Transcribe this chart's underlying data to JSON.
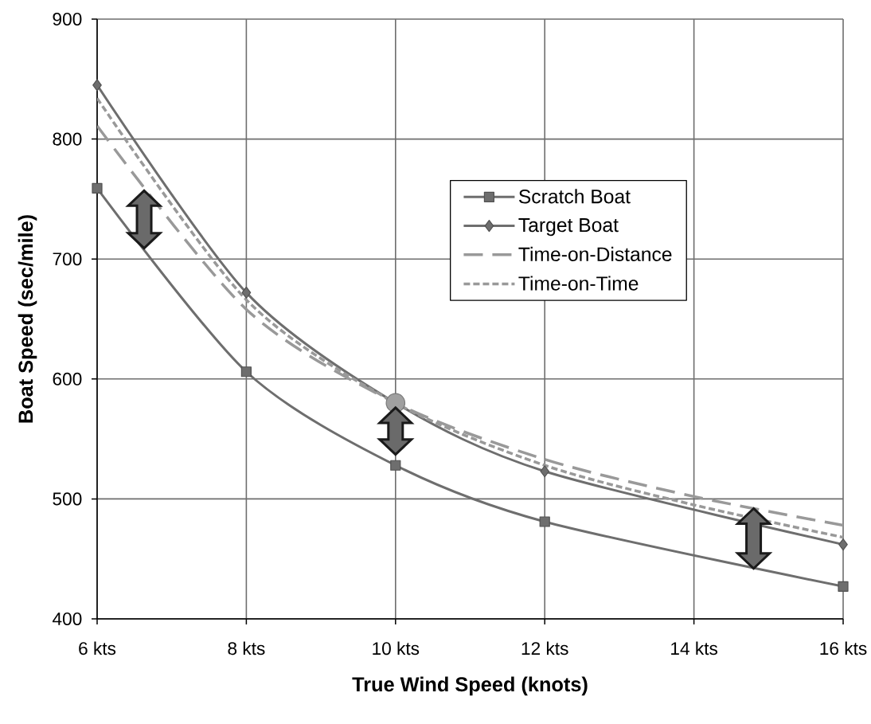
{
  "chart_data": {
    "type": "line",
    "xlabel": "True Wind Speed (knots)",
    "ylabel": "Boat Speed (sec/mile)",
    "xlim": [
      6,
      16
    ],
    "ylim": [
      400,
      900
    ],
    "xticks": [
      {
        "value": 6,
        "label": "6 kts"
      },
      {
        "value": 8,
        "label": "8 kts"
      },
      {
        "value": 10,
        "label": "10 kts"
      },
      {
        "value": 12,
        "label": "12 kts"
      },
      {
        "value": 14,
        "label": "14 kts"
      },
      {
        "value": 16,
        "label": "16 kts"
      }
    ],
    "yticks": [
      400,
      500,
      600,
      700,
      800,
      900
    ],
    "grid": true,
    "legend": "top right",
    "series": [
      {
        "name": "Scratch Boat",
        "color": "#6e6e6e",
        "x": [
          6,
          8,
          10,
          12,
          16
        ],
        "values": [
          759,
          606,
          528,
          481,
          427
        ],
        "marker": "square",
        "line_style": "solid"
      },
      {
        "name": "Target Boat",
        "color": "#6e6e6e",
        "x": [
          6,
          8,
          10,
          12,
          16
        ],
        "values": [
          845,
          672,
          580,
          523,
          462
        ],
        "marker": "diamond",
        "line_style": "solid"
      },
      {
        "name": "Time-on-Distance",
        "color": "#999999",
        "x": [
          6,
          8,
          10,
          12,
          14,
          16
        ],
        "values": [
          811,
          658,
          580,
          533,
          502,
          478
        ],
        "marker": "none",
        "line_style": "dashed"
      },
      {
        "name": "Time-on-Time",
        "color": "#999999",
        "x": [
          6,
          8,
          10,
          12,
          14,
          16
        ],
        "values": [
          834,
          666,
          580,
          528,
          495,
          468
        ],
        "marker": "none",
        "line_style": "dotted"
      },
      {
        "type": "scatter",
        "color": "#a0a0a0",
        "x": [
          10
        ],
        "values": [
          580
        ],
        "marker": "circle"
      }
    ]
  }
}
